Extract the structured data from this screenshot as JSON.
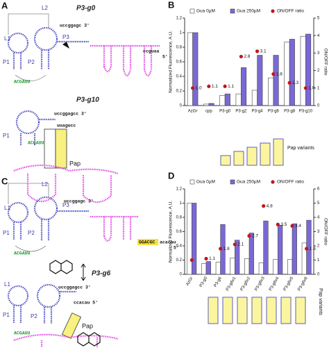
{
  "diagram": {
    "panel_a": {
      "letter": "A",
      "l1": "L1",
      "l2": "L2",
      "p1": "P1",
      "p2": "P2",
      "p3": "P3",
      "name": "P3-g0",
      "tail3": "uccggagc 3'",
      "loop": "ACGAUU",
      "tail5": "ccguaa",
      "end5": "5'",
      "name2": "P3-g10",
      "tail3_2": "uccggagcc 3'",
      "p1_2": "P1",
      "loop2": "ACGAUU",
      "seq2": "uuagucc",
      "pap": "Pap"
    },
    "panel_c": {
      "letter": "C",
      "l1": "L1",
      "l2": "L2",
      "p1": "P1",
      "p2": "P2",
      "p3": "P3",
      "tail3": "uccggagc 3'",
      "loop": "ACGAUU",
      "box": "GGACGC",
      "tail5": "acacau",
      "end5": "5'",
      "name": "P3-g6",
      "tail3_2": "uccggagcc 3'",
      "tail5_2": "ccacau 5'",
      "l1_2": "L1",
      "p1_2": "P1",
      "p2_2": "P2",
      "loop2": "ACGAUU",
      "pap": "Pap"
    }
  },
  "chart_data": [
    {
      "type": "bar",
      "panel": "B",
      "ylabel": "Normalized Fluorescence, A.U.",
      "y2label": "ON/OFF ratio",
      "annotation": "Pap variants",
      "categories": [
        "AzGr",
        "cpp",
        "P3-g0",
        "P3-g2",
        "P3-g4",
        "P3-g6",
        "P3-g8",
        "P3-g10"
      ],
      "ylim": [
        0,
        1.2
      ],
      "yticks": [
        0,
        0.2,
        0.4,
        0.6,
        0.8,
        1,
        1.2
      ],
      "y2lim": [
        0,
        5
      ],
      "y2ticks": [
        0,
        1,
        2,
        3,
        4,
        5
      ],
      "x_label_rotation": 0,
      "series": [
        {
          "name": "Gua 0µM",
          "type": "bar",
          "color": "#ffffff",
          "values": [
            1.0,
            0.02,
            0.14,
            0.16,
            0.21,
            0.38,
            0.87,
            0.95
          ]
        },
        {
          "name": "Gua 250µM",
          "type": "bar",
          "color": "#7b68d6",
          "values": [
            1.0,
            0.03,
            0.16,
            0.52,
            0.69,
            0.69,
            0.91,
            0.98
          ]
        },
        {
          "name": "ON/OFF ratio",
          "type": "scatter",
          "axis": "y2",
          "color": "#c01818",
          "values": [
            1.0,
            1.1,
            1.1,
            2.8,
            3.1,
            1.8,
            1.3,
            1.0
          ],
          "value_labels": [
            "1.0",
            "1.1",
            "1.1",
            "2.8",
            "3.1",
            "1.8",
            "1.3",
            "1.0"
          ]
        }
      ]
    },
    {
      "type": "bar",
      "panel": "D",
      "ylabel": "Normalized Fluorescence, A.U.",
      "y2label": "ON/OFF ratio",
      "annotation": "Pap variants",
      "categories": [
        "AzGr",
        "P3-g0",
        "P3-g6",
        "P3-g6x1",
        "P3-g6x2",
        "P3-g6x3",
        "P3-g6x4",
        "P3-g6x5",
        "P3-g6x6"
      ],
      "ylim": [
        0,
        1.2
      ],
      "yticks": [
        0,
        0.2,
        0.4,
        0.6,
        0.8,
        1,
        1.2
      ],
      "y2lim": [
        0,
        6
      ],
      "y2ticks": [
        0,
        1,
        2,
        3,
        4,
        5,
        6
      ],
      "x_label_rotation": -60,
      "series": [
        {
          "name": "Gua 0µM",
          "type": "bar",
          "color": "#ffffff",
          "values": [
            1.0,
            0.15,
            0.17,
            0.23,
            0.22,
            0.16,
            0.21,
            0.21,
            0.44
          ]
        },
        {
          "name": "Gua 250µM",
          "type": "bar",
          "color": "#7b68d6",
          "values": [
            1.0,
            0.18,
            0.7,
            0.48,
            0.58,
            0.75,
            0.69,
            0.71,
            0.76
          ]
        },
        {
          "name": "ON/OFF ratio",
          "type": "scatter",
          "axis": "y2",
          "color": "#c01818",
          "values": [
            1.0,
            1.1,
            1.8,
            2.1,
            2.7,
            4.8,
            3.5,
            3.4,
            1.8
          ],
          "value_labels": [
            null,
            "1.1",
            "1.8",
            "2.1",
            "2.7",
            "4.8",
            "3.5",
            "3.4",
            "1.8"
          ]
        }
      ]
    }
  ]
}
